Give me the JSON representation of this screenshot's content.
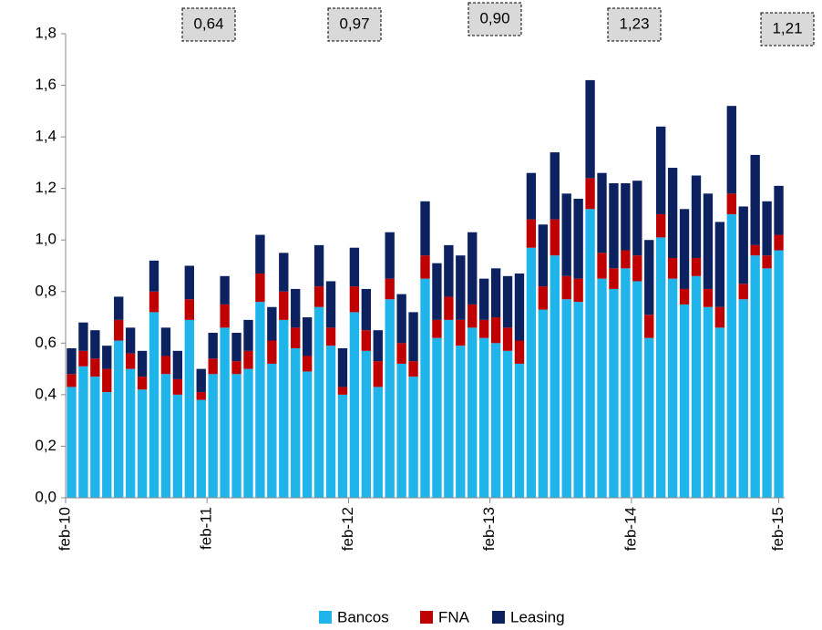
{
  "chart_data": {
    "type": "stacked-bar",
    "annotations": [
      "0,64",
      "0,97",
      "0,90",
      "1,23",
      "1,21"
    ],
    "categories": [
      "feb-10",
      null,
      null,
      null,
      null,
      null,
      null,
      null,
      null,
      null,
      null,
      null,
      "feb-11",
      null,
      null,
      null,
      null,
      null,
      null,
      null,
      null,
      null,
      null,
      null,
      "feb-12",
      null,
      null,
      null,
      null,
      null,
      null,
      null,
      null,
      null,
      null,
      null,
      "feb-13",
      null,
      null,
      null,
      null,
      null,
      null,
      null,
      null,
      null,
      null,
      null,
      "feb-14",
      null,
      null,
      null,
      null,
      null,
      null,
      null,
      null,
      null,
      null,
      null,
      "feb-15"
    ],
    "series": [
      {
        "name": "Bancos",
        "color": "#1fb4ea",
        "values": [
          0.43,
          0.51,
          0.47,
          0.41,
          0.61,
          0.5,
          0.42,
          0.72,
          0.48,
          0.4,
          0.69,
          0.38,
          0.48,
          0.66,
          0.48,
          0.5,
          0.76,
          0.52,
          0.69,
          0.58,
          0.49,
          0.74,
          0.59,
          0.4,
          0.72,
          0.57,
          0.43,
          0.77,
          0.52,
          0.47,
          0.85,
          0.62,
          0.69,
          0.59,
          0.66,
          0.62,
          0.6,
          0.57,
          0.52,
          0.97,
          0.73,
          0.94,
          0.77,
          0.76,
          1.12,
          0.85,
          0.81,
          0.89,
          0.84,
          0.62,
          1.01,
          0.85,
          0.75,
          0.86,
          0.74,
          0.66,
          1.1,
          0.77,
          0.94,
          0.89,
          0.96
        ]
      },
      {
        "name": "FNA",
        "color": "#c00000",
        "values": [
          0.05,
          0.06,
          0.07,
          0.09,
          0.08,
          0.06,
          0.05,
          0.08,
          0.07,
          0.06,
          0.08,
          0.03,
          0.06,
          0.09,
          0.05,
          0.07,
          0.11,
          0.09,
          0.11,
          0.08,
          0.06,
          0.08,
          0.07,
          0.03,
          0.1,
          0.08,
          0.1,
          0.08,
          0.08,
          0.06,
          0.09,
          0.07,
          0.09,
          0.1,
          0.09,
          0.07,
          0.1,
          0.09,
          0.09,
          0.11,
          0.09,
          0.14,
          0.09,
          0.09,
          0.12,
          0.1,
          0.08,
          0.07,
          0.1,
          0.09,
          0.09,
          0.08,
          0.06,
          0.07,
          0.07,
          0.08,
          0.08,
          0.06,
          0.04,
          0.05,
          0.06
        ]
      },
      {
        "name": "Leasing",
        "color": "#0b2160",
        "values": [
          0.1,
          0.11,
          0.11,
          0.09,
          0.09,
          0.1,
          0.1,
          0.12,
          0.11,
          0.11,
          0.13,
          0.09,
          0.1,
          0.11,
          0.11,
          0.12,
          0.15,
          0.13,
          0.15,
          0.15,
          0.15,
          0.16,
          0.18,
          0.15,
          0.15,
          0.16,
          0.12,
          0.18,
          0.19,
          0.19,
          0.21,
          0.22,
          0.2,
          0.25,
          0.28,
          0.16,
          0.19,
          0.2,
          0.26,
          0.18,
          0.24,
          0.26,
          0.32,
          0.31,
          0.38,
          0.31,
          0.33,
          0.26,
          0.29,
          0.29,
          0.34,
          0.35,
          0.31,
          0.32,
          0.37,
          0.33,
          0.34,
          0.3,
          0.35,
          0.21,
          0.19
        ]
      }
    ],
    "ylim": [
      0,
      1.8
    ],
    "yticks": [
      {
        "value": 0,
        "label": "0,0"
      },
      {
        "value": 0.2,
        "label": "0,2"
      },
      {
        "value": 0.4,
        "label": "0,4"
      },
      {
        "value": 0.6,
        "label": "0,6"
      },
      {
        "value": 0.8,
        "label": "0,8"
      },
      {
        "value": 1.0,
        "label": "1,0"
      },
      {
        "value": 1.2,
        "label": "1,2"
      },
      {
        "value": 1.4,
        "label": "1,4"
      },
      {
        "value": 1.6,
        "label": "1,6"
      },
      {
        "value": 1.8,
        "label": "1,8"
      }
    ],
    "legend": "bottom"
  }
}
